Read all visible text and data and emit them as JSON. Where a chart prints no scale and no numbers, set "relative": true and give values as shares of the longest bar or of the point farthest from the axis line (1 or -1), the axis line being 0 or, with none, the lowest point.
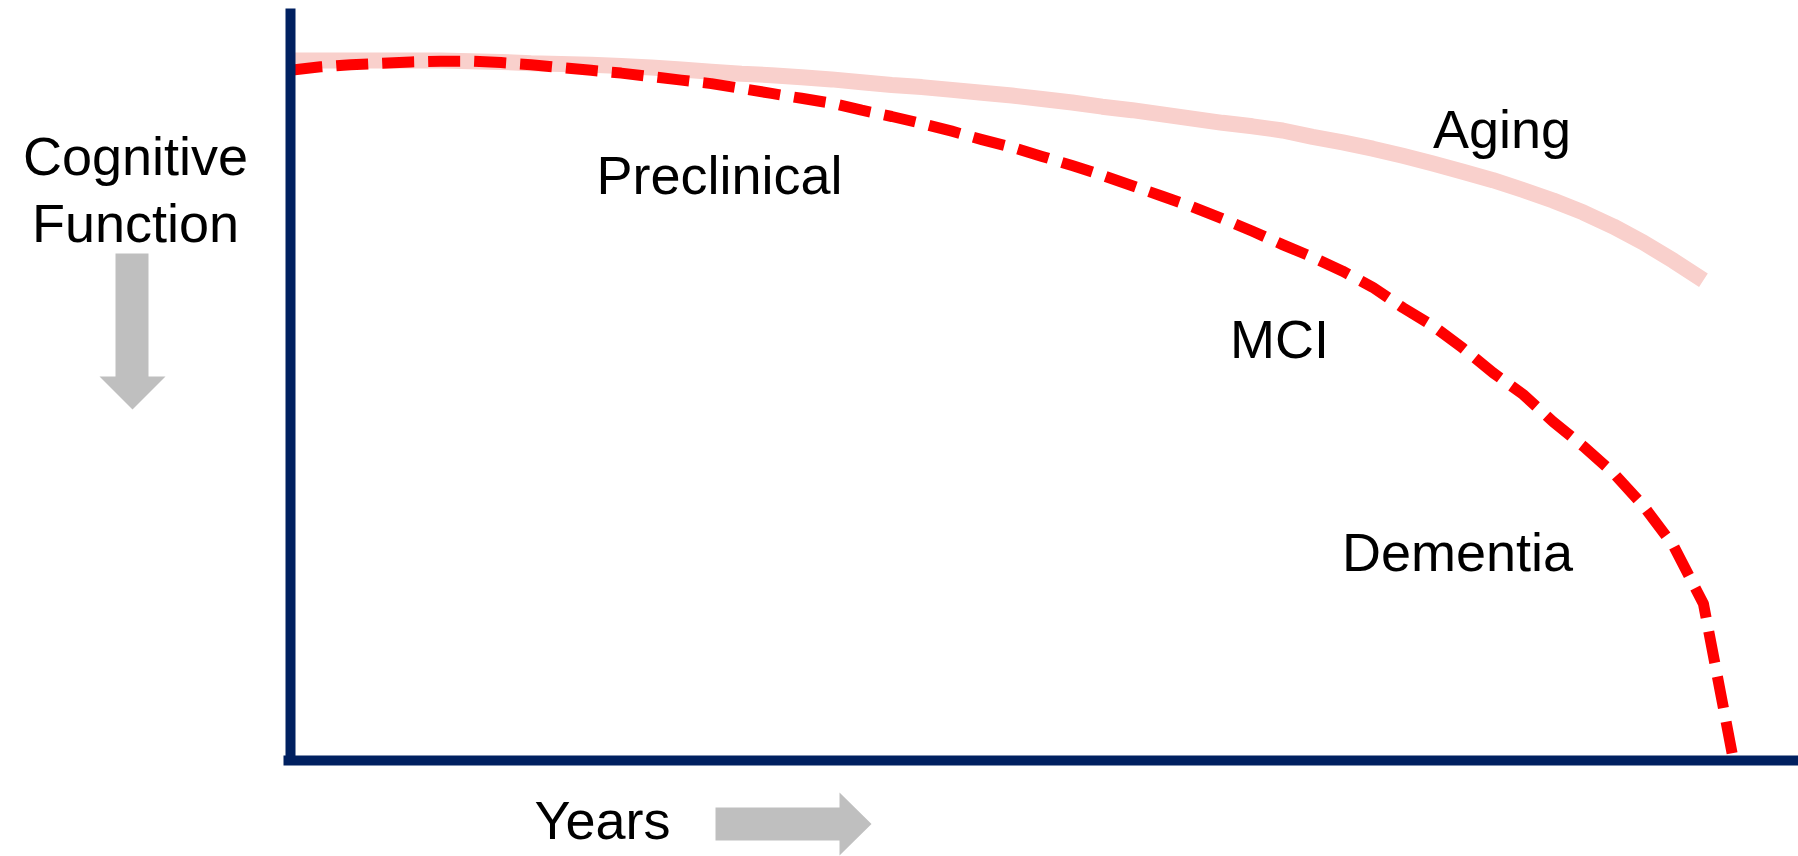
{
  "chart_data": {
    "type": "line",
    "relative": true,
    "xlabel": "Years",
    "ylabel": "Cognitive Function",
    "categories": [
      null,
      null,
      null,
      null,
      null,
      null,
      null,
      null,
      null,
      null,
      null,
      null,
      null,
      null,
      null,
      null,
      null,
      null,
      null,
      null,
      null,
      null,
      null,
      null,
      null,
      null,
      null,
      null,
      null,
      null,
      null,
      null,
      null,
      null,
      null,
      null,
      null,
      null,
      null,
      null,
      null,
      null,
      null,
      null,
      null,
      null,
      null,
      null,
      null
    ],
    "series": [
      {
        "name": "Aging",
        "color": "#f9d0cc",
        "values": [
          1.0,
          1.0,
          1.0,
          1.0,
          1.0,
          1.0,
          0.999,
          0.998,
          0.996,
          0.995,
          0.994,
          0.992,
          0.99,
          0.987,
          0.984,
          0.981,
          0.979,
          0.976,
          0.973,
          0.969,
          0.965,
          0.962,
          0.958,
          0.954,
          0.95,
          0.945,
          0.94,
          0.934,
          0.929,
          0.923,
          0.917,
          0.911,
          0.906,
          0.9,
          0.891,
          0.883,
          0.874,
          0.864,
          0.853,
          0.841,
          0.829,
          0.815,
          0.8,
          0.783,
          0.763,
          0.74,
          0.714,
          0.686,
          null
        ]
      },
      {
        "color": "#ff0000",
        "line_style": "dashed",
        "values": [
          0.986,
          0.991,
          0.994,
          0.996,
          0.998,
          0.999,
          0.999,
          0.997,
          0.994,
          0.99,
          0.986,
          0.982,
          0.977,
          0.972,
          0.967,
          0.96,
          0.953,
          0.946,
          0.939,
          0.929,
          0.92,
          0.91,
          0.899,
          0.887,
          0.876,
          0.863,
          0.85,
          0.836,
          0.821,
          0.806,
          0.791,
          0.774,
          0.756,
          0.737,
          0.719,
          0.699,
          0.676,
          0.647,
          0.621,
          0.589,
          0.554,
          0.523,
          0.484,
          0.449,
          0.411,
          0.364,
          0.307,
          0.224,
          0
        ]
      }
    ],
    "annotations": [
      "Preclinical",
      "MCI",
      "Dementia"
    ]
  }
}
